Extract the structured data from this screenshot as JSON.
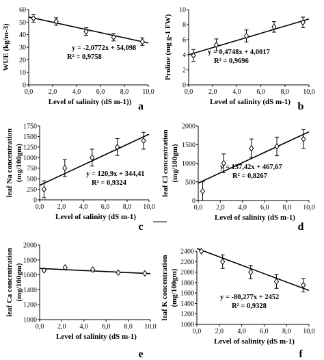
{
  "chart_data": [
    {
      "type": "scatter",
      "panel_label": "a",
      "xlabel": "Level of salinity (dS m-1))",
      "ylabel": "WUE (kg/m-3)",
      "xlim": [
        0,
        10
      ],
      "ylim": [
        0,
        60
      ],
      "xticks": [
        "0,0",
        "2,0",
        "4,0",
        "6,0",
        "8,0",
        "10,0"
      ],
      "yticks": [
        "0",
        "10",
        "20",
        "30",
        "40",
        "50",
        "60"
      ],
      "x": [
        0.4,
        2.3,
        4.8,
        7.1,
        9.5
      ],
      "y": [
        53,
        50.5,
        42.5,
        38,
        34.5
      ],
      "err": [
        3,
        3,
        3,
        3,
        3
      ],
      "trendline": {
        "slope": -2.0772,
        "intercept": 54.098
      },
      "equation": "y = -2,0772x + 54,098",
      "r2": "R² = 0,9758"
    },
    {
      "type": "scatter",
      "panel_label": "b",
      "xlabel": "Level of salinity (dS m-1)",
      "ylabel": "Proline (mg g-1 FW)",
      "xlim": [
        0,
        10
      ],
      "ylim": [
        0,
        10
      ],
      "xticks": [
        "0,0",
        "2,0",
        "4,0",
        "6,0",
        "8,0",
        "10,0"
      ],
      "yticks": [
        "0",
        "2",
        "4",
        "6",
        "8",
        "10"
      ],
      "x": [
        0.4,
        2.3,
        4.8,
        7.1,
        9.5
      ],
      "y": [
        3.9,
        5.3,
        6.5,
        7.7,
        8.3
      ],
      "err": [
        0.8,
        0.8,
        0.8,
        0.7,
        0.7
      ],
      "trendline": {
        "slope": 0.4748,
        "intercept": 4.0017
      },
      "equation": "y = 0,4748x + 4,0017",
      "r2": "R² = 0,9696"
    },
    {
      "type": "scatter",
      "panel_label": "c",
      "xlabel": "Level of salinity (dS m-1)",
      "ylabel": "leaf Na concentration (mg/100gm)",
      "xlim": [
        0,
        10
      ],
      "ylim": [
        0,
        1750
      ],
      "xticks": [
        "0,0",
        "2,0",
        "4,0",
        "6,0",
        "8,0",
        "10,0"
      ],
      "yticks": [
        "0",
        "250",
        "500",
        "750",
        "1000",
        "1250",
        "1500",
        "1750"
      ],
      "x": [
        0.4,
        2.3,
        4.8,
        7.1,
        9.5
      ],
      "y": [
        250,
        750,
        1000,
        1250,
        1400
      ],
      "err": [
        200,
        200,
        200,
        200,
        200
      ],
      "trendline": {
        "slope": 120.9,
        "intercept": 344.41
      },
      "equation": "y = 120,9x + 344,41",
      "r2": "R² = 0,9324"
    },
    {
      "type": "scatter",
      "panel_label": "d",
      "xlabel": "Level of salinity (dS m-1)",
      "ylabel": "leaf Cl concentration (mg/100gm)",
      "xlim": [
        0,
        10
      ],
      "ylim": [
        0,
        2000
      ],
      "xticks": [
        "0,0",
        "2,0",
        "4,0",
        "6,0",
        "8,0",
        "10,0"
      ],
      "yticks": [
        "0",
        "500",
        "1000",
        "1500",
        "2000"
      ],
      "x": [
        0.4,
        2.3,
        4.8,
        7.1,
        9.5
      ],
      "y": [
        250,
        1000,
        1400,
        1450,
        1650
      ],
      "err": [
        250,
        250,
        250,
        250,
        250
      ],
      "trendline": {
        "slope": 137.42,
        "intercept": 467.67
      },
      "equation": "y = 137,42x + 467,67",
      "r2": "R² = 0,8267"
    },
    {
      "type": "scatter",
      "panel_label": "e",
      "xlabel": "Level of salinity (dS m-1)",
      "ylabel": "leaf Ca concentration (mg/100gm)",
      "xlim": [
        0,
        10
      ],
      "ylim": [
        1000,
        2000
      ],
      "xticks": [
        "0,0",
        "2,0",
        "4,0",
        "6,0",
        "8,0",
        "10,0"
      ],
      "yticks": [
        "1000",
        "1200",
        "1400",
        "1600",
        "1800",
        "2000"
      ],
      "x": [
        0.4,
        2.3,
        4.8,
        7.1,
        9.5
      ],
      "y": [
        1660,
        1700,
        1670,
        1630,
        1620
      ],
      "err": [
        0,
        0,
        0,
        0,
        0
      ],
      "trendline": {
        "slope": -7,
        "intercept": 1686
      },
      "equation": "",
      "r2": ""
    },
    {
      "type": "scatter",
      "panel_label": "f",
      "xlabel": "Level of salinity (dS m-1)",
      "ylabel": "leaf K concentration (mg/100gm)",
      "xlim": [
        0,
        10
      ],
      "ylim": [
        1000,
        2400
      ],
      "xticks": [
        "0,0",
        "2,0",
        "4,0",
        "6,0",
        "8,0",
        "10,0"
      ],
      "yticks": [
        "1000",
        "1200",
        "1400",
        "1600",
        "1800",
        "2000",
        "2200",
        "2400"
      ],
      "x": [
        0.4,
        2.3,
        4.8,
        7.1,
        9.5
      ],
      "y": [
        2400,
        2200,
        2000,
        1820,
        1750
      ],
      "err": [
        0,
        130,
        130,
        130,
        130
      ],
      "trendline": {
        "slope": -80.277,
        "intercept": 2452
      },
      "equation": "y = -80,277x + 2452",
      "r2": "R² = 0,9328"
    }
  ]
}
